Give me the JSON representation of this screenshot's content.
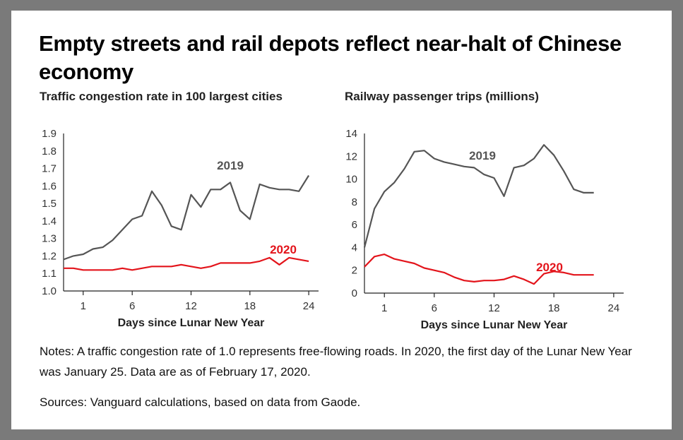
{
  "headline": "Empty streets and rail depots reflect near-halt of Chinese economy",
  "notes": "Notes: A traffic congestion rate of 1.0 represents free-flowing roads. In 2020, the first day of the Lunar New Year was January 25. Data are as of February 17, 2020.",
  "sources": "Sources: Vanguard calculations, based on data from Gaode.",
  "colors": {
    "series_2019": "#555555",
    "series_2020": "#e3141b",
    "axis": "#222222"
  },
  "chart_data": [
    {
      "type": "line",
      "title": "Traffic congestion rate in 100 largest cities",
      "xlabel": "Days since Lunar New Year",
      "ylabel": "",
      "xlim": [
        -1,
        25
      ],
      "ylim": [
        1.0,
        1.9
      ],
      "xticks": [
        1,
        6,
        12,
        18,
        24
      ],
      "yticks": [
        1.0,
        1.1,
        1.2,
        1.3,
        1.4,
        1.5,
        1.6,
        1.7,
        1.8,
        1.9
      ],
      "ytick_labels": [
        "1.0",
        "1.1",
        "1.2",
        "1.3",
        "1.4",
        "1.5",
        "1.6",
        "1.7",
        "1.8",
        "1.9"
      ],
      "series": [
        {
          "name": "2019",
          "x": [
            -1,
            0,
            1,
            2,
            3,
            4,
            5,
            6,
            7,
            8,
            9,
            10,
            11,
            12,
            13,
            14,
            15,
            16,
            17,
            18,
            19,
            20,
            21,
            22,
            23,
            24
          ],
          "values": [
            1.18,
            1.2,
            1.21,
            1.24,
            1.25,
            1.29,
            1.35,
            1.41,
            1.43,
            1.57,
            1.49,
            1.37,
            1.35,
            1.55,
            1.48,
            1.58,
            1.58,
            1.62,
            1.46,
            1.41,
            1.61,
            1.59,
            1.58,
            1.58,
            1.57,
            1.66
          ]
        },
        {
          "name": "2020",
          "x": [
            -1,
            0,
            1,
            2,
            3,
            4,
            5,
            6,
            7,
            8,
            9,
            10,
            11,
            12,
            13,
            14,
            15,
            16,
            17,
            18,
            19,
            20,
            21,
            22,
            23,
            24
          ],
          "values": [
            1.13,
            1.13,
            1.12,
            1.12,
            1.12,
            1.12,
            1.13,
            1.12,
            1.13,
            1.14,
            1.14,
            1.14,
            1.15,
            1.14,
            1.13,
            1.14,
            1.16,
            1.16,
            1.16,
            1.16,
            1.17,
            1.19,
            1.15,
            1.19,
            1.18,
            1.17
          ]
        }
      ]
    },
    {
      "type": "line",
      "title": "Railway passenger trips (millions)",
      "xlabel": "Days since Lunar New Year",
      "ylabel": "",
      "xlim": [
        -1,
        25
      ],
      "ylim": [
        0,
        14
      ],
      "xticks": [
        1,
        6,
        12,
        18,
        24
      ],
      "yticks": [
        0,
        2,
        4,
        6,
        8,
        10,
        12,
        14
      ],
      "ytick_labels": [
        "0",
        "2",
        "4",
        "6",
        "8",
        "10",
        "12",
        "14"
      ],
      "series": [
        {
          "name": "2019",
          "x": [
            -1,
            0,
            1,
            2,
            3,
            4,
            5,
            6,
            7,
            8,
            9,
            10,
            11,
            12,
            13,
            14,
            15,
            16,
            17,
            18,
            19,
            20,
            21,
            22
          ],
          "values": [
            4.0,
            7.4,
            8.9,
            9.7,
            10.9,
            12.4,
            12.5,
            11.8,
            11.5,
            11.3,
            11.1,
            11.0,
            10.4,
            10.1,
            8.5,
            11.0,
            11.2,
            11.8,
            13.0,
            12.1,
            10.7,
            9.1,
            8.8,
            8.8
          ]
        },
        {
          "name": "2020",
          "x": [
            -1,
            0,
            1,
            2,
            3,
            4,
            5,
            6,
            7,
            8,
            9,
            10,
            11,
            12,
            13,
            14,
            15,
            16,
            17,
            18,
            19,
            20,
            21,
            22
          ],
          "values": [
            2.3,
            3.2,
            3.4,
            3.0,
            2.8,
            2.6,
            2.2,
            2.0,
            1.8,
            1.4,
            1.1,
            1.0,
            1.1,
            1.1,
            1.2,
            1.5,
            1.2,
            0.8,
            1.7,
            1.9,
            1.8,
            1.6,
            1.6,
            1.6
          ]
        }
      ]
    }
  ]
}
